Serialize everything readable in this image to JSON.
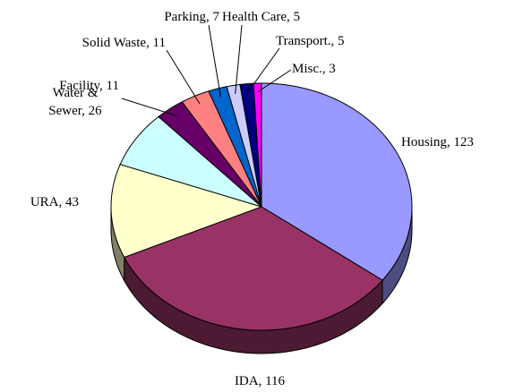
{
  "chart_data": {
    "type": "pie3d",
    "values": [
      123,
      116,
      43,
      26,
      11,
      11,
      7,
      5,
      5,
      3
    ],
    "value_labels": [
      [
        "Housing, 123"
      ],
      [
        "IDA, 116"
      ],
      [
        "URA, 43"
      ],
      [
        "Water &",
        "Sewer, 26"
      ],
      [
        "Facility, 11"
      ],
      [
        "Solid Waste, 11"
      ],
      [
        "Parking, 7"
      ],
      [
        "Health Care, 5"
      ],
      [
        "Transport., 5"
      ],
      [
        "Misc., 3"
      ]
    ],
    "colors": [
      "#9999ff",
      "#993366",
      "#ffffcc",
      "#ccffff",
      "#660066",
      "#ff8080",
      "#0066cc",
      "#ccccff",
      "#000080",
      "#ff00ff"
    ]
  }
}
